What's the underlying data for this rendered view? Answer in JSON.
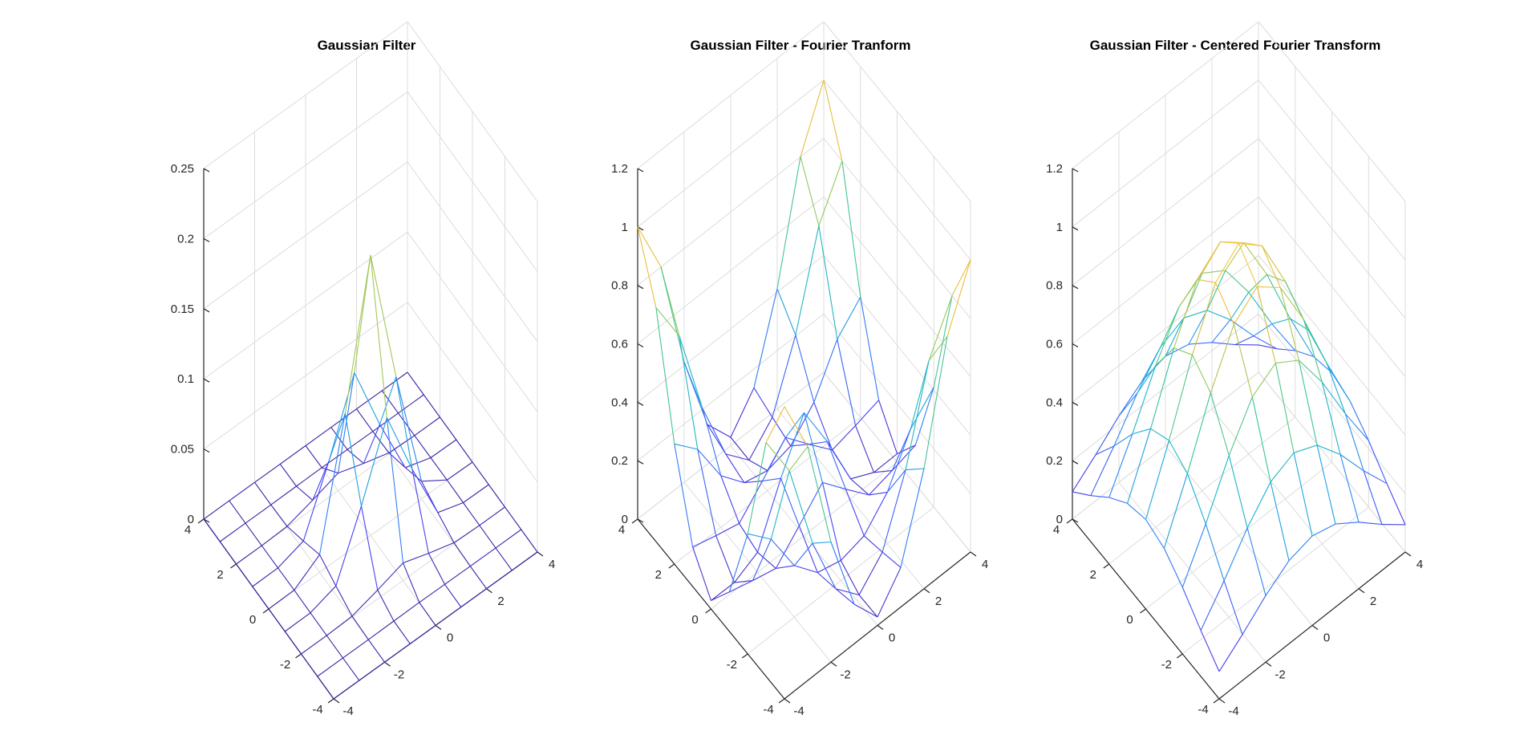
{
  "figure": {
    "colormap": [
      "#3e26a8",
      "#4743f8",
      "#2f83f8",
      "#17b1d6",
      "#35c59a",
      "#98c95d",
      "#e6bb3a",
      "#f9d43d"
    ]
  },
  "chart_data": [
    {
      "type": "surface-mesh",
      "title": "Gaussian Filter",
      "x_range": [
        -4,
        4
      ],
      "y_range": [
        -4,
        4
      ],
      "z_range": [
        0,
        0.25
      ],
      "x_ticks": [
        "-4",
        "-2",
        "0",
        "2",
        "4"
      ],
      "y_ticks": [
        "-4",
        "-2",
        "0",
        "2",
        "4"
      ],
      "z_ticks": [
        "0",
        "0.05",
        "0.1",
        "0.15",
        "0.2",
        "0.25"
      ],
      "grid": true,
      "surface": "gaussian",
      "grid_points": 9,
      "peak_value": 0.2,
      "note_shape": "single central peak at (0,0)"
    },
    {
      "type": "surface-mesh",
      "title": "Gaussian Filter - Fourier Tranform",
      "x_range": [
        -4,
        4
      ],
      "y_range": [
        -4,
        4
      ],
      "z_range": [
        0,
        1.2
      ],
      "x_ticks": [
        "-4",
        "-2",
        "0",
        "2",
        "4"
      ],
      "y_ticks": [
        "-4",
        "-2",
        "0",
        "2",
        "4"
      ],
      "z_ticks": [
        "0",
        "0.2",
        "0.4",
        "0.6",
        "0.8",
        "1",
        "1.2"
      ],
      "grid": true,
      "surface": "uncentered_fourier",
      "grid_points": 9,
      "peak_value": 1.0
    },
    {
      "type": "surface-mesh",
      "title": "Gaussian Filter - Centered Fourier Transform",
      "x_range": [
        -4,
        4
      ],
      "y_range": [
        -4,
        4
      ],
      "z_range": [
        0,
        1.2
      ],
      "x_ticks": [
        "-4",
        "-2",
        "0",
        "2",
        "4"
      ],
      "y_ticks": [
        "-4",
        "-2",
        "0",
        "2",
        "4"
      ],
      "z_ticks": [
        "0",
        "0.2",
        "0.4",
        "0.6",
        "0.8",
        "1",
        "1.2"
      ],
      "grid": true,
      "surface": "centered_fourier",
      "grid_points": 9,
      "peak_value": 1.0
    }
  ]
}
